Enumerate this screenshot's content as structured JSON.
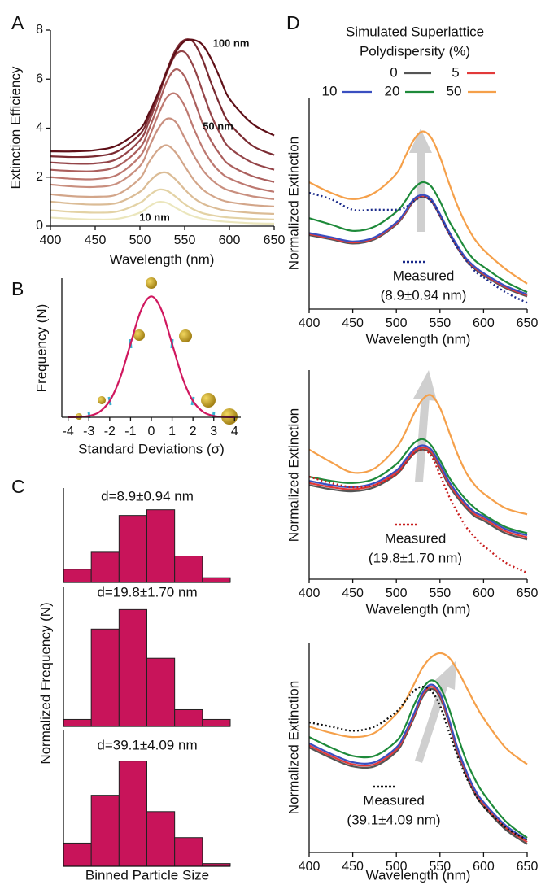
{
  "chart_data": [
    {
      "type": "line",
      "panel_label": "A",
      "xlabel": "Wavelength (nm)",
      "ylabel": "Extinction Efficiency",
      "xlim": [
        400,
        650
      ],
      "xticks": [
        400,
        450,
        500,
        550,
        600,
        650
      ],
      "ylim": [
        0,
        8
      ],
      "yticks": [
        0,
        2,
        4,
        6,
        8
      ],
      "annotations": [
        {
          "text": "100 nm"
        },
        {
          "text": "50 nm"
        },
        {
          "text": "10 nm"
        }
      ],
      "x": [
        400,
        425,
        450,
        475,
        500,
        510,
        520,
        530,
        540,
        550,
        560,
        570,
        580,
        590,
        600,
        625,
        650
      ],
      "series": [
        {
          "color": "#ebe6bd",
          "values": [
            0.35,
            0.3,
            0.27,
            0.3,
            0.55,
            0.8,
            0.98,
            0.95,
            0.75,
            0.55,
            0.4,
            0.3,
            0.24,
            0.2,
            0.17,
            0.12,
            0.1
          ]
        },
        {
          "color": "#e3d2a5",
          "values": [
            0.65,
            0.58,
            0.55,
            0.6,
            0.95,
            1.25,
            1.48,
            1.45,
            1.2,
            0.9,
            0.68,
            0.53,
            0.45,
            0.39,
            0.35,
            0.3,
            0.27
          ]
        },
        {
          "color": "#dbbc96",
          "values": [
            1.0,
            0.92,
            0.88,
            0.95,
            1.4,
            1.8,
            2.12,
            2.18,
            1.9,
            1.5,
            1.15,
            0.92,
            0.78,
            0.68,
            0.62,
            0.54,
            0.5
          ]
        },
        {
          "color": "#d3a68a",
          "values": [
            1.3,
            1.22,
            1.2,
            1.3,
            1.95,
            2.6,
            3.1,
            3.3,
            3.0,
            2.45,
            1.9,
            1.5,
            1.25,
            1.08,
            0.98,
            0.86,
            0.8
          ]
        },
        {
          "color": "#c98f7f",
          "values": [
            1.7,
            1.62,
            1.6,
            1.75,
            2.45,
            3.2,
            3.95,
            4.38,
            4.25,
            3.6,
            2.9,
            2.3,
            1.9,
            1.62,
            1.45,
            1.22,
            1.1
          ]
        },
        {
          "color": "#bd7870",
          "values": [
            2.0,
            1.93,
            1.92,
            2.1,
            2.85,
            3.6,
            4.5,
            5.25,
            5.4,
            4.9,
            4.0,
            3.2,
            2.6,
            2.2,
            1.95,
            1.6,
            1.4
          ]
        },
        {
          "color": "#ab5f5d",
          "values": [
            2.3,
            2.25,
            2.25,
            2.45,
            3.2,
            3.95,
            4.9,
            5.9,
            6.4,
            6.1,
            5.2,
            4.2,
            3.45,
            2.9,
            2.5,
            2.05,
            1.8
          ]
        },
        {
          "color": "#944448",
          "values": [
            2.6,
            2.55,
            2.56,
            2.75,
            3.5,
            4.25,
            5.2,
            6.25,
            7.0,
            7.1,
            6.5,
            5.5,
            4.5,
            3.75,
            3.2,
            2.6,
            2.3
          ]
        },
        {
          "color": "#7a2a31",
          "values": [
            2.85,
            2.82,
            2.85,
            3.05,
            3.75,
            4.45,
            5.35,
            6.35,
            7.2,
            7.6,
            7.5,
            6.8,
            5.8,
            4.9,
            4.2,
            3.3,
            2.9
          ]
        },
        {
          "color": "#5e0f17",
          "values": [
            3.05,
            3.05,
            3.1,
            3.3,
            3.95,
            4.6,
            5.4,
            6.3,
            7.1,
            7.55,
            7.6,
            7.4,
            6.8,
            6.0,
            5.2,
            4.2,
            3.7
          ]
        }
      ]
    },
    {
      "type": "line",
      "panel_label": "B",
      "xlabel": "Standard Deviations (σ)",
      "ylabel": "Frequency (N)",
      "xlim": [
        -4.3,
        4.3
      ],
      "xticks": [
        -4,
        -3,
        -2,
        -1,
        0,
        1,
        2,
        3,
        4
      ],
      "ylim": [
        0,
        1.15
      ],
      "x": [
        -4,
        -3.5,
        -3,
        -2.5,
        -2,
        -1.5,
        -1,
        -0.5,
        0,
        0.5,
        1,
        1.5,
        2,
        2.5,
        3,
        3.5,
        4
      ],
      "series": [
        {
          "color": "#d0185f",
          "values": [
            0.0003,
            0.0022,
            0.0111,
            0.0439,
            0.1353,
            0.3247,
            0.6065,
            0.8825,
            1,
            0.8825,
            0.6065,
            0.3247,
            0.1353,
            0.0439,
            0.0111,
            0.0022,
            0.0003
          ]
        }
      ]
    },
    {
      "type": "bar",
      "panel_label": "C",
      "title": "d=8.9±0.94 nm",
      "ylim": [
        0,
        1
      ],
      "color": "#c8145a",
      "categories": [
        null,
        null,
        null,
        null,
        null,
        null
      ],
      "values": [
        0.14,
        0.32,
        0.71,
        0.77,
        0.28,
        0.05
      ]
    },
    {
      "type": "bar",
      "title": "d=19.8±1.70 nm",
      "ylabel": "Normalized Frequency (N)",
      "ylim": [
        0,
        1
      ],
      "color": "#c8145a",
      "categories": [
        null,
        null,
        null,
        null,
        null,
        null
      ],
      "values": [
        0.05,
        0.7,
        0.84,
        0.49,
        0.12,
        0.05
      ]
    },
    {
      "type": "bar",
      "title": "d=39.1±4.09 nm",
      "xlabel": "Binned Particle Size",
      "ylim": [
        0,
        1
      ],
      "color": "#c8145a",
      "categories": [
        null,
        null,
        null,
        null,
        null,
        null
      ],
      "values": [
        0.17,
        0.52,
        0.77,
        0.4,
        0.21,
        0.02
      ]
    },
    {
      "type": "line",
      "panel_label": "D",
      "legend_title": [
        "Simulated Superlattice",
        "Polydispersity (%)"
      ],
      "legend": true,
      "xlabel": "Wavelength (nm)",
      "ylabel": "Normalized Extinction",
      "xlim": [
        400,
        650
      ],
      "xticks": [
        400,
        450,
        500,
        550,
        600,
        650
      ],
      "ylim": [
        0,
        1
      ],
      "measured_size": "(8.9±0.94 nm)",
      "x": [
        400,
        425,
        450,
        475,
        500,
        510,
        520,
        530,
        540,
        550,
        560,
        570,
        580,
        590,
        600,
        625,
        650
      ],
      "series": [
        {
          "name": "0",
          "color": "#555555",
          "values": [
            0.35,
            0.33,
            0.31,
            0.33,
            0.4,
            0.45,
            0.51,
            0.53,
            0.51,
            0.44,
            0.36,
            0.29,
            0.23,
            0.19,
            0.16,
            0.1,
            0.06
          ]
        },
        {
          "name": "5",
          "color": "#e23a3a",
          "values": [
            0.355,
            0.335,
            0.315,
            0.335,
            0.405,
            0.455,
            0.515,
            0.535,
            0.515,
            0.445,
            0.365,
            0.295,
            0.235,
            0.195,
            0.165,
            0.105,
            0.065
          ]
        },
        {
          "name": "10",
          "color": "#3a4fc0",
          "values": [
            0.36,
            0.34,
            0.32,
            0.34,
            0.41,
            0.46,
            0.52,
            0.54,
            0.52,
            0.45,
            0.37,
            0.3,
            0.24,
            0.2,
            0.17,
            0.11,
            0.07
          ]
        },
        {
          "name": "20",
          "color": "#1e8a3a",
          "values": [
            0.43,
            0.4,
            0.37,
            0.39,
            0.46,
            0.51,
            0.57,
            0.6,
            0.58,
            0.51,
            0.42,
            0.35,
            0.28,
            0.23,
            0.2,
            0.13,
            0.08
          ]
        },
        {
          "name": "50",
          "color": "#f5a04a",
          "values": [
            0.6,
            0.55,
            0.52,
            0.55,
            0.64,
            0.72,
            0.8,
            0.84,
            0.81,
            0.72,
            0.6,
            0.49,
            0.4,
            0.33,
            0.28,
            0.19,
            0.12
          ]
        },
        {
          "name": "Measured",
          "color": "#1a2a8a",
          "dash": "dotted",
          "values": [
            0.55,
            0.52,
            0.47,
            0.47,
            0.47,
            0.48,
            0.51,
            0.53,
            0.51,
            0.44,
            0.36,
            0.29,
            0.23,
            0.18,
            0.15,
            0.08,
            0.03
          ]
        }
      ]
    },
    {
      "type": "line",
      "xlabel": "Wavelength (nm)",
      "ylabel": "Normalized Extinction",
      "xlim": [
        400,
        650
      ],
      "xticks": [
        400,
        450,
        500,
        550,
        600,
        650
      ],
      "ylim": [
        0,
        1
      ],
      "measured_size": "(19.8±1.70 nm)",
      "x": [
        400,
        425,
        450,
        475,
        500,
        510,
        520,
        530,
        540,
        550,
        560,
        570,
        580,
        590,
        600,
        625,
        650
      ],
      "series": [
        {
          "color": "#555555",
          "values": [
            0.45,
            0.43,
            0.42,
            0.44,
            0.5,
            0.55,
            0.6,
            0.62,
            0.6,
            0.53,
            0.45,
            0.39,
            0.34,
            0.3,
            0.28,
            0.22,
            0.19
          ]
        },
        {
          "color": "#e23a3a",
          "values": [
            0.46,
            0.44,
            0.43,
            0.45,
            0.51,
            0.56,
            0.61,
            0.63,
            0.61,
            0.54,
            0.46,
            0.4,
            0.35,
            0.31,
            0.29,
            0.23,
            0.2
          ]
        },
        {
          "color": "#3a4fc0",
          "values": [
            0.47,
            0.45,
            0.44,
            0.46,
            0.52,
            0.57,
            0.62,
            0.64,
            0.62,
            0.55,
            0.47,
            0.41,
            0.36,
            0.32,
            0.3,
            0.24,
            0.21
          ]
        },
        {
          "color": "#1e8a3a",
          "values": [
            0.49,
            0.47,
            0.46,
            0.48,
            0.55,
            0.6,
            0.65,
            0.67,
            0.64,
            0.57,
            0.49,
            0.43,
            0.38,
            0.34,
            0.31,
            0.25,
            0.22
          ]
        },
        {
          "color": "#f5a04a",
          "values": [
            0.62,
            0.56,
            0.51,
            0.53,
            0.63,
            0.7,
            0.79,
            0.86,
            0.88,
            0.82,
            0.71,
            0.6,
            0.51,
            0.45,
            0.41,
            0.34,
            0.31
          ]
        },
        {
          "name": "Measured",
          "color": "#c81e1e",
          "dash": "dotted",
          "values": [
            0.49,
            0.46,
            0.44,
            0.45,
            0.5,
            0.55,
            0.6,
            0.62,
            0.59,
            0.5,
            0.4,
            0.32,
            0.25,
            0.2,
            0.16,
            0.08,
            0.03
          ]
        }
      ]
    },
    {
      "type": "line",
      "xlabel": "Wavelength (nm)",
      "ylabel": "Normalized Extinction",
      "xlim": [
        400,
        650
      ],
      "xticks": [
        400,
        450,
        500,
        550,
        600,
        650
      ],
      "ylim": [
        0,
        1
      ],
      "measured_size": "(39.1±4.09 nm)",
      "x": [
        400,
        425,
        450,
        475,
        500,
        510,
        520,
        530,
        540,
        550,
        560,
        570,
        580,
        590,
        600,
        625,
        650
      ],
      "series": [
        {
          "color": "#555555",
          "values": [
            0.5,
            0.45,
            0.41,
            0.41,
            0.48,
            0.55,
            0.64,
            0.74,
            0.78,
            0.74,
            0.62,
            0.48,
            0.37,
            0.28,
            0.22,
            0.11,
            0.04
          ]
        },
        {
          "color": "#e23a3a",
          "values": [
            0.51,
            0.46,
            0.42,
            0.42,
            0.49,
            0.56,
            0.65,
            0.75,
            0.79,
            0.75,
            0.63,
            0.49,
            0.38,
            0.29,
            0.23,
            0.12,
            0.05
          ]
        },
        {
          "color": "#3a4fc0",
          "values": [
            0.52,
            0.47,
            0.43,
            0.43,
            0.5,
            0.57,
            0.66,
            0.76,
            0.8,
            0.76,
            0.64,
            0.5,
            0.39,
            0.3,
            0.24,
            0.13,
            0.06
          ]
        },
        {
          "color": "#1e8a3a",
          "values": [
            0.55,
            0.5,
            0.46,
            0.46,
            0.53,
            0.6,
            0.7,
            0.78,
            0.82,
            0.79,
            0.69,
            0.56,
            0.44,
            0.35,
            0.28,
            0.15,
            0.07
          ]
        },
        {
          "color": "#f5a04a",
          "values": [
            0.6,
            0.57,
            0.55,
            0.57,
            0.66,
            0.72,
            0.8,
            0.88,
            0.93,
            0.95,
            0.93,
            0.87,
            0.79,
            0.71,
            0.64,
            0.5,
            0.42
          ]
        },
        {
          "name": "Measured",
          "color": "#111111",
          "dash": "dotted",
          "values": [
            0.62,
            0.6,
            0.58,
            0.6,
            0.67,
            0.72,
            0.77,
            0.79,
            0.77,
            0.7,
            0.58,
            0.46,
            0.36,
            0.28,
            0.22,
            0.12,
            0.06
          ]
        }
      ]
    }
  ]
}
